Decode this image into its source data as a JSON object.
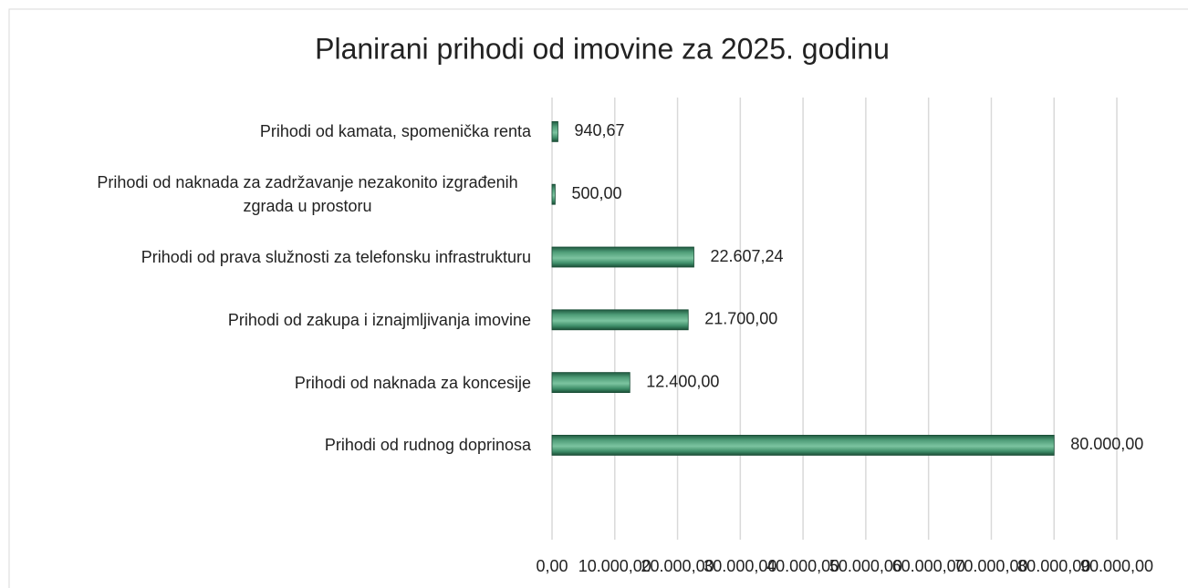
{
  "chart_data": {
    "type": "bar",
    "orientation": "horizontal",
    "title": "Planirani prihodi od imovine za 2025. godinu",
    "categories": [
      "Prihodi od kamata, spomenička renta",
      "Prihodi od naknada za zadržavanje nezakonito izgrađenih zgrada u prostoru",
      "Prihodi od prava služnosti za telefonsku infrastrukturu",
      "Prihodi od zakupa i iznajmljivanja imovine",
      "Prihodi od naknada za koncesije",
      "Prihodi od rudnog doprinosa"
    ],
    "values": [
      940.67,
      500,
      22607.24,
      21700,
      12400,
      80000
    ],
    "value_labels": [
      "940,67",
      "500,00",
      "22.607,24",
      "21.700,00",
      "12.400,00",
      "80.000,00"
    ],
    "color": "#3f8f6a",
    "xlim": [
      0,
      90000
    ],
    "xticks": [
      {
        "value": 0,
        "label": "0,00"
      },
      {
        "value": 10000,
        "label": "10.000,00"
      },
      {
        "value": 20000,
        "label": "20.000,00"
      },
      {
        "value": 30000,
        "label": "30.000,00"
      },
      {
        "value": 40000,
        "label": "40.000,00"
      },
      {
        "value": 50000,
        "label": "50.000,00"
      },
      {
        "value": 60000,
        "label": "60.000,00"
      },
      {
        "value": 70000,
        "label": "70.000,00"
      },
      {
        "value": 80000,
        "label": "80.000,00"
      },
      {
        "value": 90000,
        "label": "90.000,00"
      }
    ],
    "grid": true
  }
}
